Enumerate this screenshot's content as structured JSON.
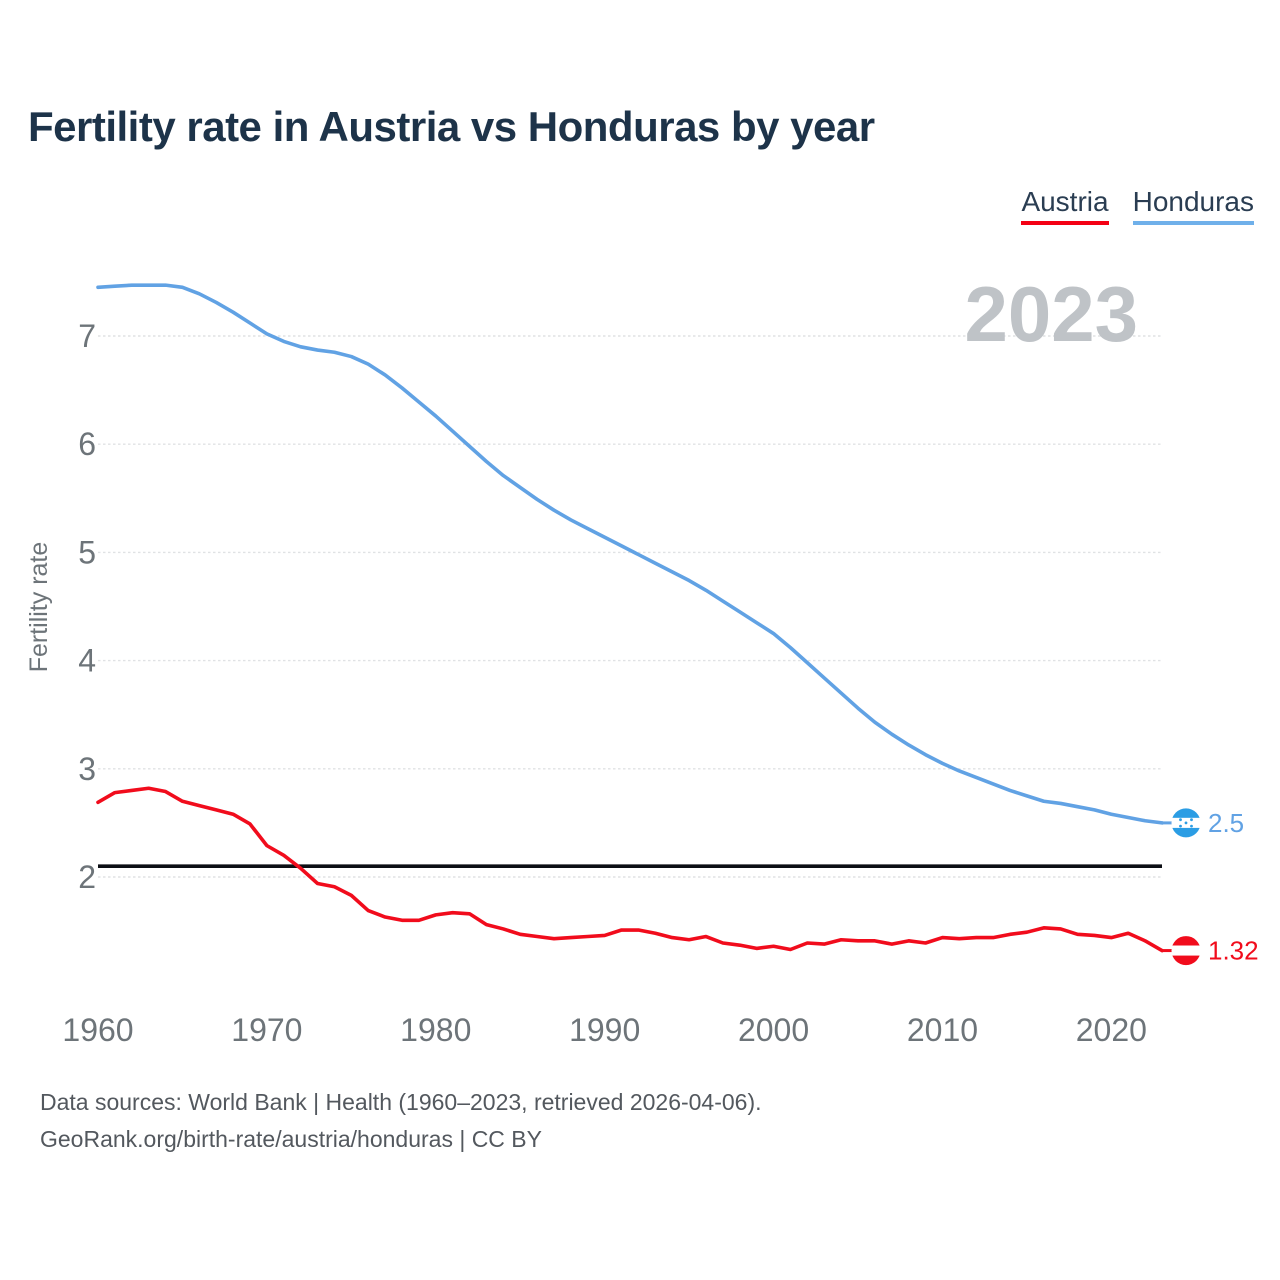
{
  "title": "Fertility rate in Austria vs Honduras by year",
  "watermark": "2023",
  "legend": {
    "items": [
      {
        "label": "Austria",
        "color": "#f40014"
      },
      {
        "label": "Honduras",
        "color": "#6fb0ea"
      }
    ]
  },
  "footer": {
    "line1": "Data sources: World Bank | Health (1960–2023, retrieved 2026-04-06).",
    "line2": "GeoRank.org/birth-rate/austria/honduras | CC BY"
  },
  "chart_data": {
    "type": "line",
    "title": "Fertility rate in Austria vs Honduras by year",
    "xlabel": "",
    "ylabel": "Fertility rate",
    "xlim": [
      1960,
      2023
    ],
    "ylim": [
      1.2,
      7.75
    ],
    "x_ticks": [
      1960,
      1970,
      1980,
      1990,
      2000,
      2010,
      2020
    ],
    "y_ticks": [
      2,
      3,
      4,
      5,
      6,
      7
    ],
    "grid": "horizontal-dotted",
    "legend_position": "top-right",
    "reference_line": {
      "value": 2.1,
      "color": "#0c0f15",
      "meaning": "replacement-level fertility"
    },
    "x": [
      1960,
      1961,
      1962,
      1963,
      1964,
      1965,
      1966,
      1967,
      1968,
      1969,
      1970,
      1971,
      1972,
      1973,
      1974,
      1975,
      1976,
      1977,
      1978,
      1979,
      1980,
      1981,
      1982,
      1983,
      1984,
      1985,
      1986,
      1987,
      1988,
      1989,
      1990,
      1991,
      1992,
      1993,
      1994,
      1995,
      1996,
      1997,
      1998,
      1999,
      2000,
      2001,
      2002,
      2003,
      2004,
      2005,
      2006,
      2007,
      2008,
      2009,
      2010,
      2011,
      2012,
      2013,
      2014,
      2015,
      2016,
      2017,
      2018,
      2019,
      2020,
      2021,
      2022,
      2023
    ],
    "series": [
      {
        "name": "Austria",
        "flag": "austria",
        "color": "#f10c1c",
        "flag_colors": {
          "band": "#f10c1c",
          "middle": "#ffffff"
        },
        "end_label": "1.32",
        "values": [
          2.69,
          2.78,
          2.8,
          2.82,
          2.79,
          2.7,
          2.66,
          2.62,
          2.58,
          2.49,
          2.29,
          2.2,
          2.08,
          1.94,
          1.91,
          1.83,
          1.69,
          1.63,
          1.6,
          1.6,
          1.65,
          1.67,
          1.66,
          1.56,
          1.52,
          1.47,
          1.45,
          1.43,
          1.44,
          1.45,
          1.46,
          1.51,
          1.51,
          1.48,
          1.44,
          1.42,
          1.45,
          1.39,
          1.37,
          1.34,
          1.36,
          1.33,
          1.39,
          1.38,
          1.42,
          1.41,
          1.41,
          1.38,
          1.41,
          1.39,
          1.44,
          1.43,
          1.44,
          1.44,
          1.47,
          1.49,
          1.53,
          1.52,
          1.47,
          1.46,
          1.44,
          1.48,
          1.41,
          1.32
        ]
      },
      {
        "name": "Honduras",
        "flag": "honduras",
        "color": "#61a2e4",
        "flag_colors": {
          "band": "#2b9de4",
          "middle": "#ffffff",
          "stars": "#2b9de4"
        },
        "end_label": "2.5",
        "values": [
          7.45,
          7.46,
          7.47,
          7.47,
          7.47,
          7.45,
          7.39,
          7.31,
          7.22,
          7.12,
          7.02,
          6.95,
          6.9,
          6.87,
          6.85,
          6.81,
          6.74,
          6.64,
          6.52,
          6.39,
          6.26,
          6.12,
          5.98,
          5.84,
          5.71,
          5.6,
          5.49,
          5.39,
          5.3,
          5.22,
          5.14,
          5.06,
          4.98,
          4.9,
          4.82,
          4.74,
          4.65,
          4.55,
          4.45,
          4.35,
          4.25,
          4.12,
          3.98,
          3.84,
          3.7,
          3.56,
          3.43,
          3.32,
          3.22,
          3.13,
          3.05,
          2.98,
          2.92,
          2.86,
          2.8,
          2.75,
          2.7,
          2.68,
          2.65,
          2.62,
          2.58,
          2.55,
          2.52,
          2.5
        ]
      }
    ]
  }
}
